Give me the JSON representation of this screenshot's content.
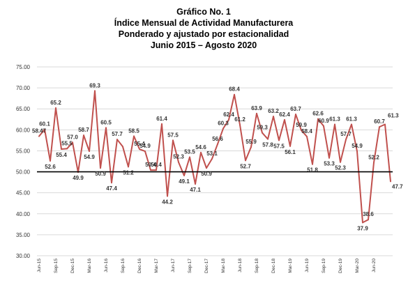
{
  "chart_data": {
    "type": "line",
    "title": [
      "Gráfico No. 1",
      "Índice Mensual de Actividad Manufacturera",
      "Ponderado y ajustado por estacionalidad",
      "Junio 2015 – Agosto  2020"
    ],
    "ylim": [
      30,
      75
    ],
    "yticks": [
      "30.00",
      "35.00",
      "40.00",
      "45.00",
      "50.00",
      "55.00",
      "60.00",
      "65.00",
      "70.00",
      "75.00"
    ],
    "reference_line": 50,
    "x_tick_labels": [
      "Jun-15",
      "Sep-15",
      "Dec-15",
      "Mar-16",
      "Jun-16",
      "Sep-16",
      "Dec-16",
      "Mar-17",
      "Jun-17",
      "Sep-17",
      "Dec-17",
      "Mar-18",
      "Jun-18",
      "Sep-18",
      "Dec-18",
      "Mar-19",
      "Jun-19",
      "Sep-19",
      "Dec-19",
      "Mar-20",
      "Jun-20"
    ],
    "grid": true,
    "line_color": "#c0504d",
    "reference_color": "#000000",
    "grid_color": "#d9d9d9",
    "series": [
      {
        "values": [
          58.47,
          60.1,
          52.6,
          65.2,
          55.4,
          55.5,
          57.0,
          49.9,
          58.7,
          54.9,
          69.3,
          50.9,
          60.5,
          47.4,
          57.7,
          56.0,
          51.2,
          58.5,
          55.4,
          54.9,
          50.4,
          50.4,
          61.4,
          44.2,
          57.5,
          52.3,
          49.1,
          53.5,
          47.1,
          54.6,
          50.9,
          53.1,
          56.6,
          60.3,
          62.4,
          68.4,
          61.2,
          52.7,
          55.9,
          63.9,
          59.3,
          57.8,
          63.2,
          57.5,
          62.4,
          56.1,
          63.7,
          59.9,
          58.4,
          51.8,
          62.6,
          60.9,
          53.3,
          61.3,
          52.3,
          57.7,
          61.3,
          54.9,
          37.9,
          38.6,
          52.2,
          60.7,
          61.3,
          47.7
        ],
        "labels": [
          "58.47",
          "60.1",
          "52.6",
          "65.2",
          "55.4",
          "55.5",
          "57.0",
          "49.9",
          "58.7",
          "54.9",
          "69.3",
          "50.9",
          "60.5",
          "47.4",
          "57.7",
          "",
          "51.2",
          "58.5",
          "55.4",
          "54.9",
          "50.4",
          "50.4",
          "61.4",
          "44.2",
          "57.5",
          "52.3",
          "49.1",
          "53.5",
          "47.1",
          "54.6",
          "50.9",
          "53.1",
          "56.6",
          "60.3",
          "62.4",
          "68.4",
          "61.2",
          "52.7",
          "55.9",
          "63.9",
          "59.3",
          "57.8",
          "63.2",
          "57.5",
          "62.4",
          "56.1",
          "63.7",
          "59.9",
          "58.4",
          "51.8",
          "62.6",
          "60.9",
          "53.3",
          "61.3",
          "52.3",
          "57.7",
          "61.3",
          "54.9",
          "37.9",
          "38.6",
          "52.2",
          "60.7",
          "61.3",
          "47.7"
        ]
      }
    ]
  }
}
